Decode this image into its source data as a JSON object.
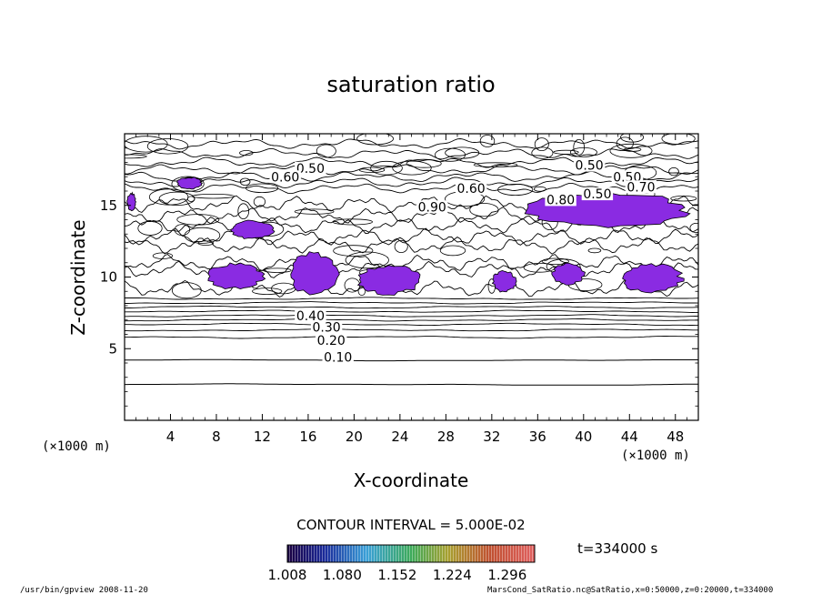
{
  "chart_data": {
    "type": "contour",
    "title": "saturation ratio",
    "xlabel": "X-coordinate",
    "ylabel": "Z-coordinate",
    "x_unit_label": "(×1000 m)",
    "y_unit_label": "(×1000 m)",
    "xlim": [
      0,
      50
    ],
    "ylim": [
      0,
      20
    ],
    "x_ticks": [
      "4",
      "8",
      "12",
      "16",
      "20",
      "24",
      "28",
      "32",
      "36",
      "40",
      "44",
      "48"
    ],
    "x_tick_values": [
      4,
      8,
      12,
      16,
      20,
      24,
      28,
      32,
      36,
      40,
      44,
      48
    ],
    "y_ticks": [
      "5",
      "10",
      "15"
    ],
    "y_tick_values": [
      5,
      10,
      15
    ],
    "contour_interval_text": "CONTOUR INTERVAL = 5.000E-02",
    "contour_labels": [
      "0.10",
      "0.20",
      "0.30",
      "0.40",
      "0.50",
      "0.50",
      "0.50",
      "0.50",
      "0.60",
      "0.60",
      "0.70",
      "0.80",
      "0.90"
    ],
    "time_label": "t=334000 s",
    "colorbar": {
      "tick_labels": [
        "1.008",
        "1.080",
        "1.152",
        "1.224",
        "1.296"
      ],
      "tick_values": [
        1.008,
        1.08,
        1.152,
        1.224,
        1.296
      ],
      "range": [
        1.008,
        1.332
      ]
    },
    "shaded_regions": [
      {
        "x": [
          0.2,
          1.0
        ],
        "z": [
          14.6,
          15.9
        ]
      },
      {
        "x": [
          4.5,
          6.8
        ],
        "z": [
          16.1,
          17.0
        ]
      },
      {
        "x": [
          9.0,
          13.2
        ],
        "z": [
          12.6,
          14.0
        ]
      },
      {
        "x": [
          7.0,
          12.3
        ],
        "z": [
          9.1,
          11.0
        ]
      },
      {
        "x": [
          14.2,
          18.8
        ],
        "z": [
          8.6,
          11.8
        ]
      },
      {
        "x": [
          20.0,
          26.0
        ],
        "z": [
          8.7,
          10.9
        ]
      },
      {
        "x": [
          32.0,
          34.2
        ],
        "z": [
          8.9,
          10.5
        ]
      },
      {
        "x": [
          34.5,
          49.8
        ],
        "z": [
          13.3,
          16.0
        ]
      },
      {
        "x": [
          37.2,
          40.2
        ],
        "z": [
          9.4,
          11.0
        ]
      },
      {
        "x": [
          43.0,
          48.8
        ],
        "z": [
          8.8,
          11.0
        ]
      }
    ],
    "shade_color": "#8a2be2"
  },
  "footer": {
    "left": "/usr/bin/gpview   2008-11-20",
    "right": "MarsCond_SatRatio.nc@SatRatio,x=0:50000,z=0:20000,t=334000"
  }
}
